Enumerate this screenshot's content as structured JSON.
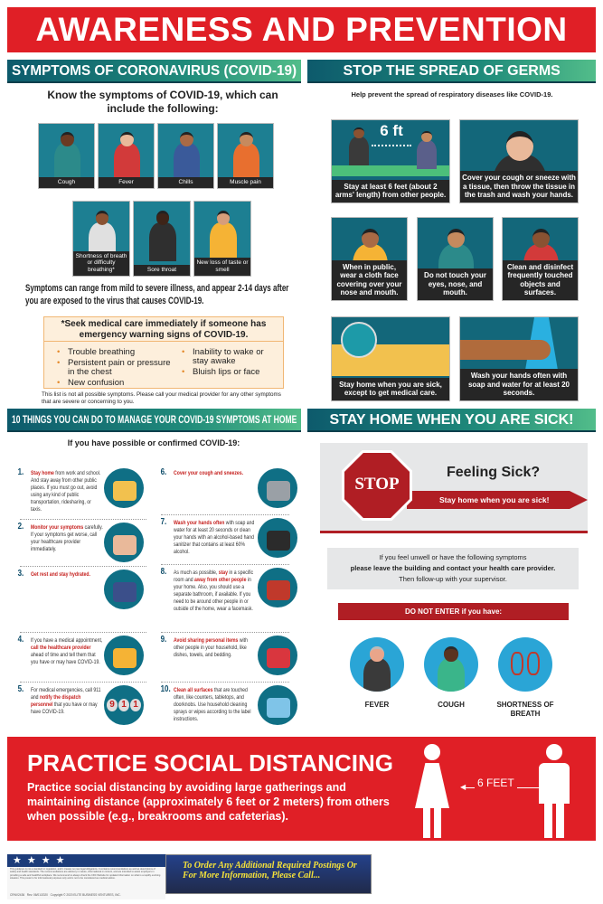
{
  "banner": {
    "title": "AWARENESS AND PREVENTION"
  },
  "symptoms": {
    "header": "SYMPTOMS OF CORONAVIRUS (COVID-19)",
    "intro": "Know the symptoms of COVID-19, which can include the following:",
    "tiles_row1": [
      "Cough",
      "Fever",
      "Chills",
      "Muscle pain"
    ],
    "tiles_row2": [
      "Shortness of breath or difficulty breathing*",
      "Sore throat",
      "New loss of taste or smell"
    ],
    "range_text": "Symptoms can range from mild to severe illness, and appear 2-14 days after you are exposed to the virus that causes COVID-19.",
    "warning": {
      "title": "*Seek medical care immediately if someone has emergency warning signs of COVID-19.",
      "left": [
        "Trouble breathing",
        "Persistent pain or pressure in the chest",
        "New confusion"
      ],
      "right": [
        "Inability to wake or stay awake",
        "Bluish lips or face"
      ]
    },
    "footnote": "This list is not all possible symptoms. Please call your medical provider for any other symptoms that are severe or concerning to you."
  },
  "germs": {
    "header": "STOP THE SPREAD OF GERMS",
    "intro": "Help prevent the spread of respiratory diseases like COVID-19.",
    "distance_label": "6 ft",
    "tiles": [
      "Stay at least 6 feet (about 2 arms' length) from other people.",
      "Cover your cough or sneeze with a tissue, then throw the tissue in the trash and wash your hands.",
      "When in public, wear a cloth face covering over your nose and mouth.",
      "Do not touch your eyes, nose, and mouth.",
      "Clean and disinfect frequently touched objects and surfaces.",
      "Stay home when you are sick, except to get medical care.",
      "Wash your hands often with soap and water for at least 20 seconds."
    ]
  },
  "manage": {
    "header": "10 THINGS YOU CAN DO TO MANAGE YOUR COVID-19 SYMPTOMS AT HOME",
    "intro": "If you have possible or confirmed COVID-19:",
    "items": [
      {
        "num": "1.",
        "parts": [
          {
            "t": "Stay home",
            "b": true
          },
          {
            "t": " from work and school. And stay away from other public places. If you must go out, avoid using any kind of public transportation, ridesharing, or taxis."
          }
        ]
      },
      {
        "num": "2.",
        "parts": [
          {
            "t": "Monitor your symptoms",
            "b": true
          },
          {
            "t": " carefully. If your symptoms get worse, call your healthcare provider immediately."
          }
        ]
      },
      {
        "num": "3.",
        "parts": [
          {
            "t": "Get rest and stay hydrated.",
            "b": true
          }
        ]
      },
      {
        "num": "4.",
        "parts": [
          {
            "t": "If you have a medical appointment, "
          },
          {
            "t": "call the healthcare provider",
            "b": true
          },
          {
            "t": " ahead of time and tell them that you have or may have COVID-19."
          }
        ]
      },
      {
        "num": "5.",
        "parts": [
          {
            "t": "For medical emergencies, call 911 and "
          },
          {
            "t": "notify the dispatch personnel",
            "b": true
          },
          {
            "t": " that you have or may have COVID-19."
          }
        ]
      },
      {
        "num": "6.",
        "parts": [
          {
            "t": "Cover your cough and sneezes.",
            "b": true
          }
        ]
      },
      {
        "num": "7.",
        "parts": [
          {
            "t": "Wash your hands often",
            "b": true
          },
          {
            "t": " with soap and water for at least 20 seconds or clean your hands with an alcohol-based hand sanitizer that contains at least 60% alcohol."
          }
        ]
      },
      {
        "num": "8.",
        "parts": [
          {
            "t": "As much as possible, "
          },
          {
            "t": "stay",
            "b": true
          },
          {
            "t": " in a specific room and "
          },
          {
            "t": "away from other people",
            "b": true
          },
          {
            "t": " in your home. Also, you should use a separate bathroom, if available. If you need to be around other people in or outside of the home, wear a facemask."
          }
        ]
      },
      {
        "num": "9.",
        "parts": [
          {
            "t": "Avoid sharing personal items",
            "b": true
          },
          {
            "t": " with other people in your household, like dishes, towels, and bedding."
          }
        ]
      },
      {
        "num": "10.",
        "parts": [
          {
            "t": "Clean all surfaces",
            "b": true
          },
          {
            "t": " that are touched often, like counters, tabletops, and doorknobs. Use household cleaning sprays or wipes according to the label instructions."
          }
        ]
      }
    ],
    "phone_digits": "911"
  },
  "stay_home": {
    "header": "STAY HOME WHEN YOU ARE SICK!",
    "stop_label": "STOP",
    "feeling_sick": "Feeling Sick?",
    "arrow_text": "Stay home when you are sick!",
    "info_line1": "If you feel unwell or have the following symptoms",
    "info_line2": "please leave the building and contact your health care provider.",
    "info_line3": "Then follow-up with your supervisor.",
    "do_not_enter": "DO NOT ENTER if you have:",
    "symptoms": [
      "FEVER",
      "COUGH",
      "SHORTNESS OF BREATH"
    ]
  },
  "social": {
    "title": "PRACTICE SOCIAL DISTANCING",
    "body": "Practice social distancing by avoiding large gatherings and maintaining distance (approximately 6 feet or 2 meters) from others when possible (e.g., breakrooms and cafeterias).",
    "distance": "6 FEET"
  },
  "footer": {
    "disclaimer": "This guidance is not a standard or regulation, and it creates no new legal obligations. It contains recommendations as well as descriptions of safety and health standards. The recommendations are advisory in nature, informational in content, and are intended to assist employers in providing a safe and healthful workplace. We recommend to always check the CDC Website for updated information on what is a rapidly evolving situation. This poster is for informational purposes only and is not to be considered as medical advice.",
    "code": "CRNV2436",
    "rev": "Rev. 06/01/2020",
    "copyright": "Copyright © 2020 ELITE BUSINESS VENTURES, INC.",
    "order_text": "To Order Any Additional Required Postings Or For More Information, Please Call..."
  },
  "colors": {
    "red": "#e01f26",
    "teal": "#13677a",
    "dark_red": "#b01e24",
    "caption": "#262626"
  }
}
